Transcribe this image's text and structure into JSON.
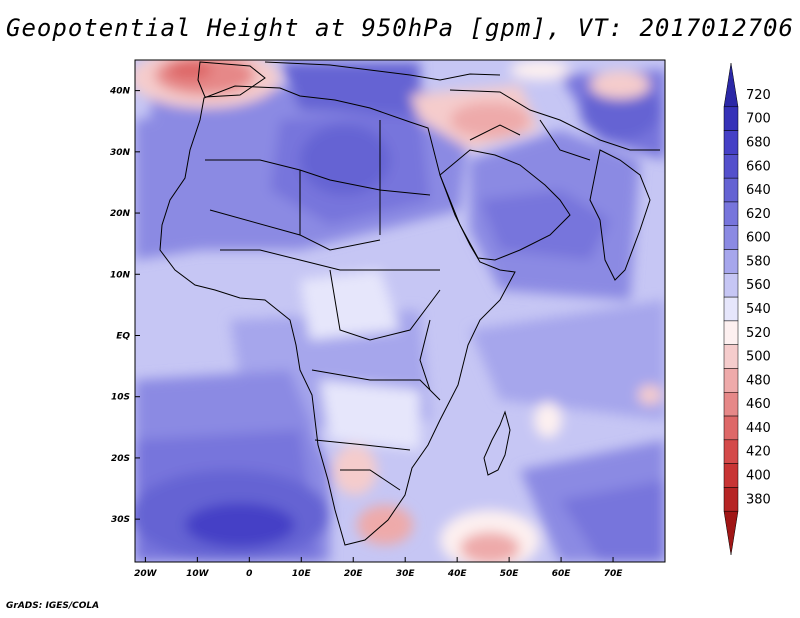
{
  "title": "Geopotential Height at 950hPa [gpm], VT: 2017012706",
  "credit": "GrADS: IGES/COLA",
  "map": {
    "variable": "Geopotential Height",
    "level": "950hPa",
    "units": "gpm",
    "valid_time": "2017012706",
    "lon_range": [
      -22,
      80
    ],
    "lat_range": [
      -37,
      45
    ],
    "x_ticks": [
      {
        "lon": -20,
        "label": "20W"
      },
      {
        "lon": -10,
        "label": "10W"
      },
      {
        "lon": 0,
        "label": "0"
      },
      {
        "lon": 10,
        "label": "10E"
      },
      {
        "lon": 20,
        "label": "20E"
      },
      {
        "lon": 30,
        "label": "30E"
      },
      {
        "lon": 40,
        "label": "40E"
      },
      {
        "lon": 50,
        "label": "50E"
      },
      {
        "lon": 60,
        "label": "60E"
      },
      {
        "lon": 70,
        "label": "70E"
      }
    ],
    "y_ticks": [
      {
        "lat": 40,
        "label": "40N"
      },
      {
        "lat": 30,
        "label": "30N"
      },
      {
        "lat": 20,
        "label": "20N"
      },
      {
        "lat": 10,
        "label": "10N"
      },
      {
        "lat": 0,
        "label": "EQ"
      },
      {
        "lat": -10,
        "label": "10S"
      },
      {
        "lat": -20,
        "label": "20S"
      },
      {
        "lat": -30,
        "label": "30S"
      }
    ]
  },
  "colorbar": {
    "labels": [
      "720",
      "700",
      "680",
      "660",
      "640",
      "620",
      "600",
      "580",
      "560",
      "540",
      "520",
      "500",
      "480",
      "460",
      "440",
      "420",
      "400",
      "380"
    ],
    "colors": [
      "#2b28a6",
      "#3632b8",
      "#4540c6",
      "#5450cc",
      "#6563d3",
      "#7775dc",
      "#8b8ae3",
      "#a6a6ec",
      "#c6c6f4",
      "#e6e6fb",
      "#fdf0f0",
      "#f5cccc",
      "#eeaaaa",
      "#e68888",
      "#de6868",
      "#d44a4a",
      "#c83434",
      "#b62424",
      "#a01616"
    ]
  }
}
